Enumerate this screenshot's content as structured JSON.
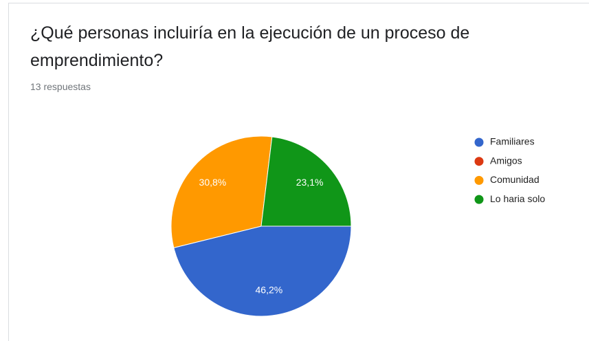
{
  "chart_data": {
    "type": "pie",
    "title": "¿Qué personas incluiría en la ejecución de un proceso de emprendimiento?",
    "subtitle": "13 respuestas",
    "categories": [
      "Familiares",
      "Amigos",
      "Comunidad",
      "Lo haria solo"
    ],
    "values": [
      46.2,
      0,
      30.8,
      23.1
    ],
    "value_labels": [
      "46,2%",
      null,
      "30,8%",
      "23,1%"
    ],
    "colors": [
      "#3366cc",
      "#dc3912",
      "#ff9900",
      "#109618"
    ],
    "legend": "right"
  }
}
